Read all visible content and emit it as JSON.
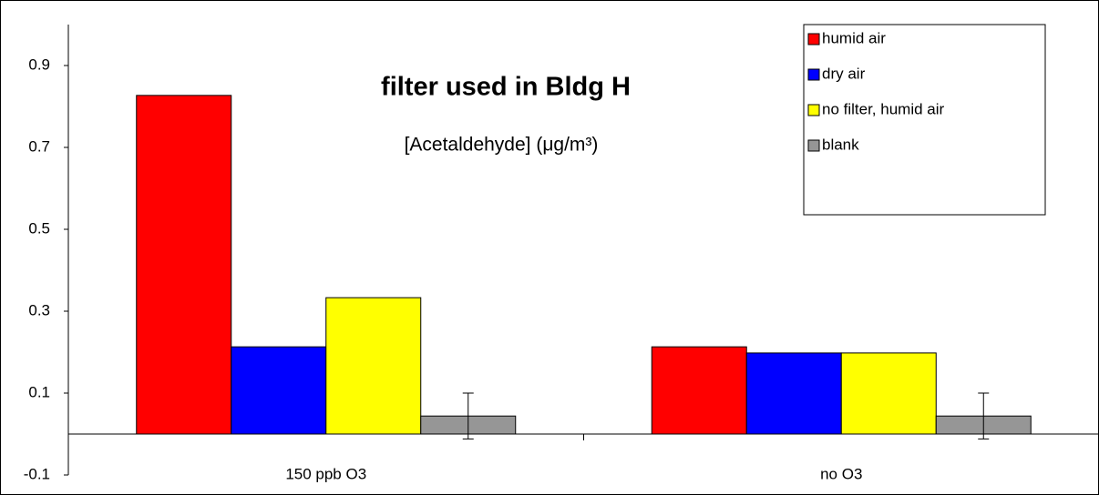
{
  "chart_data": {
    "type": "bar",
    "title": "filter used in Bldg H",
    "subtitle": "[Acetaldehyde] (μg/m³)",
    "categories": [
      "150 ppb O3",
      "no O3"
    ],
    "series": [
      {
        "name": "humid air",
        "color": "#ff0000",
        "values": [
          0.827,
          0.213
        ]
      },
      {
        "name": "dry air",
        "color": "#0000ff",
        "values": [
          0.213,
          0.198
        ]
      },
      {
        "name": "no filter, humid air",
        "color": "#ffff00",
        "values": [
          0.333,
          0.198
        ]
      },
      {
        "name": "blank",
        "color": "#969696",
        "values": [
          0.044,
          0.044
        ],
        "errors": [
          0.056,
          0.056
        ]
      }
    ],
    "ylim": [
      -0.1,
      1.0
    ],
    "yticks": [
      -0.1,
      0.1,
      0.3,
      0.5,
      0.7,
      0.9
    ],
    "grid": false,
    "legend": "upper right"
  }
}
